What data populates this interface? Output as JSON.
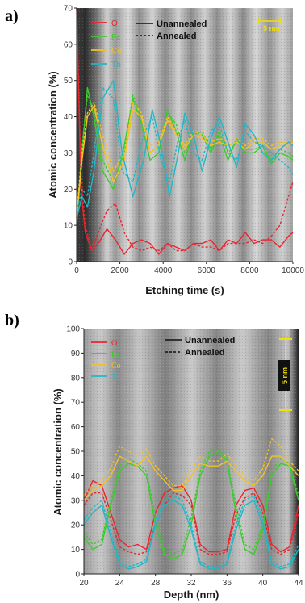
{
  "colors": {
    "O": "#e8262e",
    "Fe": "#3ccb2e",
    "Co": "#f3c224",
    "Tb": "#22b6c6",
    "scale_bar": "#f0e000"
  },
  "chart_data": [
    {
      "panel_label": "a)",
      "type": "line",
      "background": "TEM image with vertical light/dark bands",
      "xlabel": "Etching time (s)",
      "ylabel": "Atomic concentration (%)",
      "xlim": [
        0,
        10000
      ],
      "ylim": [
        0,
        70
      ],
      "xticks": [
        0,
        2000,
        4000,
        6000,
        8000,
        10000
      ],
      "yticks": [
        0,
        10,
        20,
        30,
        40,
        50,
        60,
        70
      ],
      "grid": false,
      "legend_position": "top-left",
      "style_legend": {
        "solid": "Unannealed",
        "dashed": "Annealed"
      },
      "scale_bar_label": "5 nm",
      "series": [
        {
          "name": "O",
          "style": "solid",
          "x": [
            0,
            200,
            400,
            700,
            1000,
            1400,
            1800,
            2200,
            2600,
            3000,
            3400,
            3800,
            4200,
            4600,
            5000,
            5400,
            5800,
            6200,
            6600,
            7000,
            7400,
            7800,
            8200,
            8600,
            9000,
            9400,
            9800,
            10000
          ],
          "y": [
            70,
            20,
            8,
            3,
            5,
            9,
            6,
            2,
            5,
            6,
            5,
            2,
            5,
            4,
            3,
            5,
            5,
            6,
            3,
            6,
            5,
            8,
            5,
            6,
            6,
            4,
            7,
            8
          ]
        },
        {
          "name": "O",
          "style": "dashed",
          "x": [
            0,
            200,
            400,
            700,
            1000,
            1400,
            1800,
            2200,
            2600,
            3000,
            3400,
            3800,
            4200,
            4600,
            5000,
            5400,
            5800,
            6200,
            6600,
            7000,
            7400,
            7800,
            8200,
            8600,
            9000,
            9400,
            9800,
            10000
          ],
          "y": [
            70,
            25,
            10,
            3,
            8,
            14,
            16,
            8,
            4,
            3,
            4,
            3,
            5,
            3,
            3,
            5,
            4,
            4,
            3,
            5,
            5,
            5,
            6,
            5,
            7,
            10,
            18,
            22
          ]
        },
        {
          "name": "Fe",
          "style": "solid",
          "x": [
            0,
            250,
            500,
            800,
            1200,
            1700,
            2200,
            2600,
            3000,
            3400,
            3800,
            4200,
            4600,
            5000,
            5400,
            5800,
            6200,
            6600,
            7000,
            7400,
            7800,
            8200,
            8600,
            9000,
            9400,
            9800,
            10000
          ],
          "y": [
            10,
            30,
            48,
            40,
            25,
            20,
            32,
            45,
            38,
            28,
            30,
            42,
            36,
            28,
            36,
            35,
            30,
            35,
            28,
            34,
            30,
            30,
            32,
            27,
            30,
            29,
            28
          ]
        },
        {
          "name": "Fe",
          "style": "dashed",
          "x": [
            0,
            250,
            500,
            800,
            1200,
            1700,
            2200,
            2600,
            3000,
            3400,
            3800,
            4200,
            4600,
            5000,
            5400,
            5800,
            6200,
            6600,
            7000,
            7400,
            7800,
            8200,
            8600,
            9000,
            9400,
            9800,
            10000
          ],
          "y": [
            12,
            32,
            46,
            42,
            28,
            22,
            30,
            46,
            40,
            30,
            32,
            41,
            38,
            30,
            35,
            36,
            31,
            36,
            30,
            33,
            31,
            31,
            32,
            28,
            31,
            30,
            29
          ]
        },
        {
          "name": "Co",
          "style": "solid",
          "x": [
            0,
            250,
            500,
            800,
            1200,
            1700,
            2200,
            2600,
            3000,
            3400,
            3800,
            4200,
            4600,
            5000,
            5400,
            5800,
            6200,
            6600,
            7000,
            7400,
            7800,
            8200,
            8600,
            9000,
            9400,
            9800,
            10000
          ],
          "y": [
            12,
            28,
            40,
            43,
            32,
            22,
            28,
            42,
            40,
            30,
            32,
            39,
            35,
            31,
            35,
            34,
            32,
            33,
            32,
            33,
            31,
            33,
            33,
            31,
            32,
            32,
            33
          ]
        },
        {
          "name": "Co",
          "style": "dashed",
          "x": [
            0,
            250,
            500,
            800,
            1200,
            1700,
            2200,
            2600,
            3000,
            3400,
            3800,
            4200,
            4600,
            5000,
            5400,
            5800,
            6200,
            6600,
            7000,
            7400,
            7800,
            8200,
            8600,
            9000,
            9400,
            9800,
            10000
          ],
          "y": [
            13,
            30,
            41,
            44,
            35,
            25,
            30,
            44,
            41,
            32,
            33,
            40,
            36,
            32,
            36,
            35,
            33,
            34,
            33,
            34,
            32,
            34,
            34,
            32,
            33,
            33,
            34
          ]
        },
        {
          "name": "Tb",
          "style": "solid",
          "x": [
            0,
            250,
            500,
            800,
            1200,
            1700,
            2100,
            2600,
            3100,
            3500,
            3900,
            4300,
            4700,
            5000,
            5400,
            5800,
            6200,
            6600,
            7000,
            7400,
            7800,
            8200,
            8600,
            9000,
            9400,
            9800,
            10000
          ],
          "y": [
            12,
            18,
            15,
            25,
            45,
            50,
            30,
            18,
            28,
            42,
            32,
            18,
            30,
            41,
            35,
            25,
            34,
            40,
            33,
            26,
            38,
            35,
            30,
            28,
            31,
            33,
            32
          ]
        },
        {
          "name": "Tb",
          "style": "dashed",
          "x": [
            0,
            250,
            500,
            800,
            1200,
            1700,
            2100,
            2600,
            3100,
            3500,
            3900,
            4300,
            4700,
            5000,
            5400,
            5800,
            6200,
            6600,
            7000,
            7400,
            7800,
            8200,
            8600,
            9000,
            9400,
            9800,
            10000
          ],
          "y": [
            14,
            20,
            18,
            30,
            48,
            45,
            25,
            22,
            35,
            40,
            28,
            22,
            34,
            39,
            30,
            28,
            36,
            38,
            30,
            28,
            36,
            33,
            32,
            30,
            28,
            26,
            24
          ]
        }
      ]
    },
    {
      "panel_label": "b)",
      "type": "line",
      "background": "TEM image with vertical light/dark bands",
      "xlabel": "Depth (nm)",
      "ylabel": "Atomic concentration (%)",
      "xlim": [
        20,
        44
      ],
      "ylim": [
        0,
        100
      ],
      "xticks": [
        20,
        24,
        28,
        32,
        36,
        40,
        44
      ],
      "yticks": [
        0,
        10,
        20,
        30,
        40,
        50,
        60,
        70,
        80,
        90,
        100
      ],
      "grid": false,
      "legend_position": "top-left",
      "style_legend": {
        "solid": "Unannealed",
        "dashed": "Annealed"
      },
      "scale_bar_label": "5 nm",
      "series": [
        {
          "name": "O",
          "style": "solid",
          "x": [
            20,
            21,
            22,
            23,
            24,
            25,
            26,
            27,
            28,
            29,
            30,
            31,
            32,
            33,
            34,
            35,
            36,
            37,
            38,
            39,
            40,
            41,
            42,
            43,
            44
          ],
          "y": [
            30,
            38,
            36,
            25,
            14,
            11,
            12,
            10,
            25,
            33,
            35,
            36,
            30,
            12,
            9,
            9,
            10,
            28,
            34,
            35,
            28,
            12,
            9,
            11,
            28
          ]
        },
        {
          "name": "O",
          "style": "dashed",
          "x": [
            20,
            21,
            22,
            23,
            24,
            25,
            26,
            27,
            28,
            29,
            30,
            31,
            32,
            33,
            34,
            35,
            36,
            37,
            38,
            39,
            40,
            41,
            42,
            43,
            44
          ],
          "y": [
            28,
            33,
            33,
            22,
            11,
            9,
            8,
            9,
            20,
            28,
            33,
            32,
            28,
            10,
            8,
            8,
            9,
            24,
            31,
            33,
            25,
            10,
            8,
            10,
            25
          ]
        },
        {
          "name": "Fe",
          "style": "solid",
          "x": [
            20,
            21,
            22,
            23,
            24,
            25,
            26,
            27,
            28,
            29,
            30,
            31,
            32,
            33,
            34,
            35,
            36,
            37,
            38,
            39,
            40,
            41,
            42,
            43,
            44
          ],
          "y": [
            15,
            10,
            12,
            28,
            42,
            45,
            44,
            40,
            20,
            8,
            6,
            8,
            20,
            40,
            48,
            50,
            46,
            25,
            10,
            8,
            18,
            40,
            45,
            44,
            30
          ]
        },
        {
          "name": "Fe",
          "style": "dashed",
          "x": [
            20,
            21,
            22,
            23,
            24,
            25,
            26,
            27,
            28,
            29,
            30,
            31,
            32,
            33,
            34,
            35,
            36,
            37,
            38,
            39,
            40,
            41,
            42,
            43,
            44
          ],
          "y": [
            17,
            12,
            14,
            30,
            44,
            47,
            45,
            42,
            23,
            10,
            8,
            10,
            23,
            42,
            50,
            51,
            47,
            28,
            12,
            10,
            20,
            42,
            47,
            45,
            32
          ]
        },
        {
          "name": "Co",
          "style": "solid",
          "x": [
            20,
            21,
            22,
            23,
            24,
            25,
            26,
            27,
            28,
            29,
            30,
            31,
            32,
            33,
            34,
            35,
            36,
            37,
            38,
            39,
            40,
            41,
            42,
            43,
            44
          ],
          "y": [
            30,
            34,
            36,
            40,
            48,
            46,
            44,
            48,
            42,
            38,
            34,
            34,
            40,
            45,
            44,
            44,
            46,
            42,
            38,
            36,
            40,
            48,
            48,
            44,
            40
          ]
        },
        {
          "name": "Co",
          "style": "dashed",
          "x": [
            20,
            21,
            22,
            23,
            24,
            25,
            26,
            27,
            28,
            29,
            30,
            31,
            32,
            33,
            34,
            35,
            36,
            37,
            38,
            39,
            40,
            41,
            42,
            43,
            44
          ],
          "y": [
            32,
            36,
            38,
            43,
            52,
            50,
            48,
            51,
            44,
            40,
            36,
            36,
            42,
            48,
            46,
            46,
            49,
            44,
            40,
            38,
            43,
            55,
            52,
            46,
            42
          ]
        },
        {
          "name": "Tb",
          "style": "solid",
          "x": [
            20,
            21,
            22,
            23,
            24,
            25,
            26,
            27,
            28,
            29,
            30,
            31,
            32,
            33,
            34,
            35,
            36,
            37,
            38,
            39,
            40,
            41,
            42,
            43,
            44
          ],
          "y": [
            20,
            25,
            28,
            15,
            4,
            2,
            3,
            5,
            20,
            28,
            30,
            28,
            18,
            4,
            2,
            2,
            4,
            18,
            28,
            30,
            20,
            4,
            2,
            3,
            10
          ]
        },
        {
          "name": "Tb",
          "style": "dashed",
          "x": [
            20,
            21,
            22,
            23,
            24,
            25,
            26,
            27,
            28,
            29,
            30,
            31,
            32,
            33,
            34,
            35,
            36,
            37,
            38,
            39,
            40,
            41,
            42,
            43,
            44
          ],
          "y": [
            22,
            27,
            30,
            17,
            5,
            3,
            4,
            6,
            22,
            30,
            32,
            30,
            20,
            5,
            3,
            3,
            5,
            20,
            30,
            32,
            22,
            5,
            3,
            4,
            12
          ]
        }
      ]
    }
  ]
}
